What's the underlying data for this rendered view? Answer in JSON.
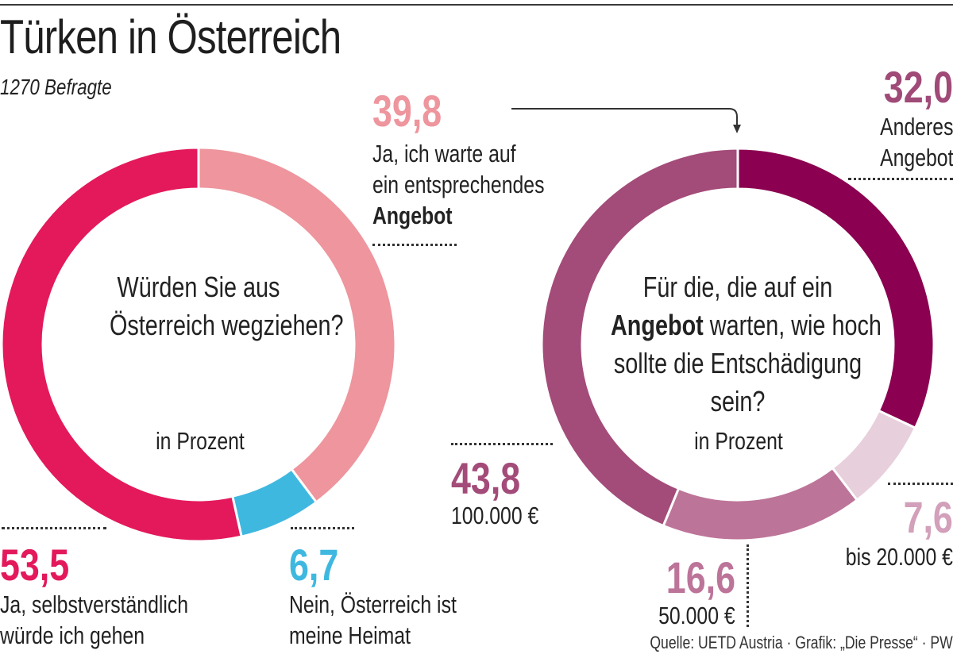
{
  "header": {
    "title": "Türken in Österreich",
    "subtitle": "1270 Befragte"
  },
  "chart_data": [
    {
      "type": "pie",
      "variant": "donut",
      "question": "Würden Sie aus Österreich wegziehen?",
      "question_lines": [
        "Würden Sie aus",
        "Österreich wegziehen?"
      ],
      "unit_label": "in Prozent",
      "start": "top",
      "direction": "clockwise",
      "slices": [
        {
          "value": 39.8,
          "value_label": "39,8",
          "label_lines": [
            "Ja, ich warte auf",
            "ein entsprechendes"
          ],
          "label_bold": "Angebot",
          "color": "#ee959d"
        },
        {
          "value": 6.7,
          "value_label": "6,7",
          "label_lines": [
            "Nein, Österreich ist",
            "meine Heimat"
          ],
          "color": "#3fb8e0"
        },
        {
          "value": 53.5,
          "value_label": "53,5",
          "label_lines": [
            "Ja, selbstverständlich",
            "würde ich gehen"
          ],
          "color": "#e3195b"
        }
      ]
    },
    {
      "type": "pie",
      "variant": "donut",
      "question_lines": [
        "Für die, die auf ein",
        "warten, wie hoch",
        "sollte die Entschädigung",
        "sein?"
      ],
      "question_bold": "Angebot",
      "unit_label": "in Prozent",
      "start": "top",
      "direction": "clockwise",
      "slices": [
        {
          "value": 32.0,
          "value_label": "32,0",
          "label_lines": [
            "Anderes",
            "Angebot"
          ],
          "color": "#8b0050"
        },
        {
          "value": 7.6,
          "value_label": "7,6",
          "label_lines": [
            "bis 20.000 €"
          ],
          "color": "#e8cfdc"
        },
        {
          "value": 16.6,
          "value_label": "16,6",
          "label_lines": [
            "50.000 €"
          ],
          "color": "#bd7499"
        },
        {
          "value": 43.8,
          "value_label": "43,8",
          "label_lines": [
            "100.000 €"
          ],
          "color": "#a34b79"
        }
      ]
    }
  ],
  "value_colors": {
    "ja_angebot": "#ee959d",
    "nein": "#3fb8e0",
    "ja_gehen": "#e3195b",
    "anderes": "#a04a78",
    "bis20k": "#d2a0ba",
    "50k": "#bd7499",
    "100k": "#a34b79"
  },
  "footer": {
    "source": "Quelle: UETD Austria · Grafik: „Die Presse“ · PW"
  }
}
